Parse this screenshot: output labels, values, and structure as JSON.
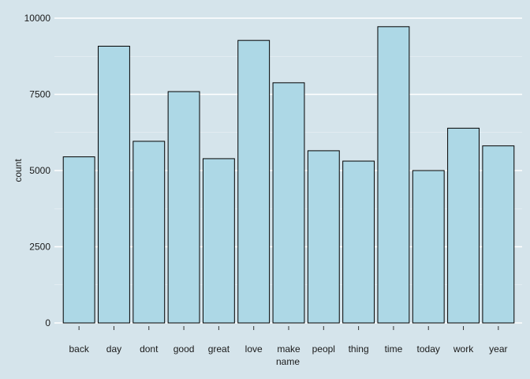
{
  "chart_data": {
    "type": "bar",
    "title": "",
    "xlabel": "name",
    "ylabel": "count",
    "categories": [
      "back",
      "day",
      "dont",
      "good",
      "great",
      "love",
      "make",
      "peopl",
      "thing",
      "time",
      "today",
      "work",
      "year"
    ],
    "values": [
      5450,
      9080,
      5960,
      7590,
      5390,
      9270,
      7880,
      5650,
      5310,
      9720,
      5000,
      6390,
      5810
    ],
    "yticks": [
      0,
      2500,
      5000,
      7500,
      10000
    ],
    "ylim": [
      0,
      10000
    ],
    "grid": true,
    "bar_fill": "#add8e6",
    "bar_stroke": "#000000",
    "background": "#d5e4eb",
    "gridline_color": "#ffffff"
  }
}
